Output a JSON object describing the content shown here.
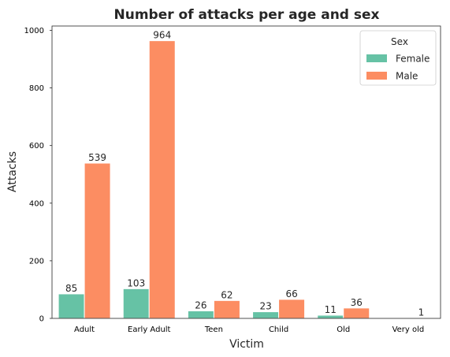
{
  "chart_data": {
    "type": "bar",
    "title": "Number of attacks per age and sex",
    "xlabel": "Victim",
    "ylabel": "Attacks",
    "categories": [
      "Adult",
      "Early Adult",
      "Teen",
      "Child",
      "Old",
      "Very old"
    ],
    "series": [
      {
        "name": "Female",
        "color": "#66c2a5",
        "values": [
          85,
          103,
          26,
          23,
          11,
          null
        ]
      },
      {
        "name": "Male",
        "color": "#fc8d62",
        "values": [
          539,
          964,
          62,
          66,
          36,
          1
        ]
      }
    ],
    "data_labels": [
      [
        "85",
        "103",
        "26",
        "23",
        "11",
        ""
      ],
      [
        "539",
        "964",
        "62",
        "66",
        "36",
        "1"
      ]
    ],
    "ylim": [
      0,
      1015
    ],
    "yticks": [
      0,
      200,
      400,
      600,
      800,
      1000
    ],
    "grid": false,
    "legend": {
      "title": "Sex",
      "placement": "top-right"
    }
  }
}
